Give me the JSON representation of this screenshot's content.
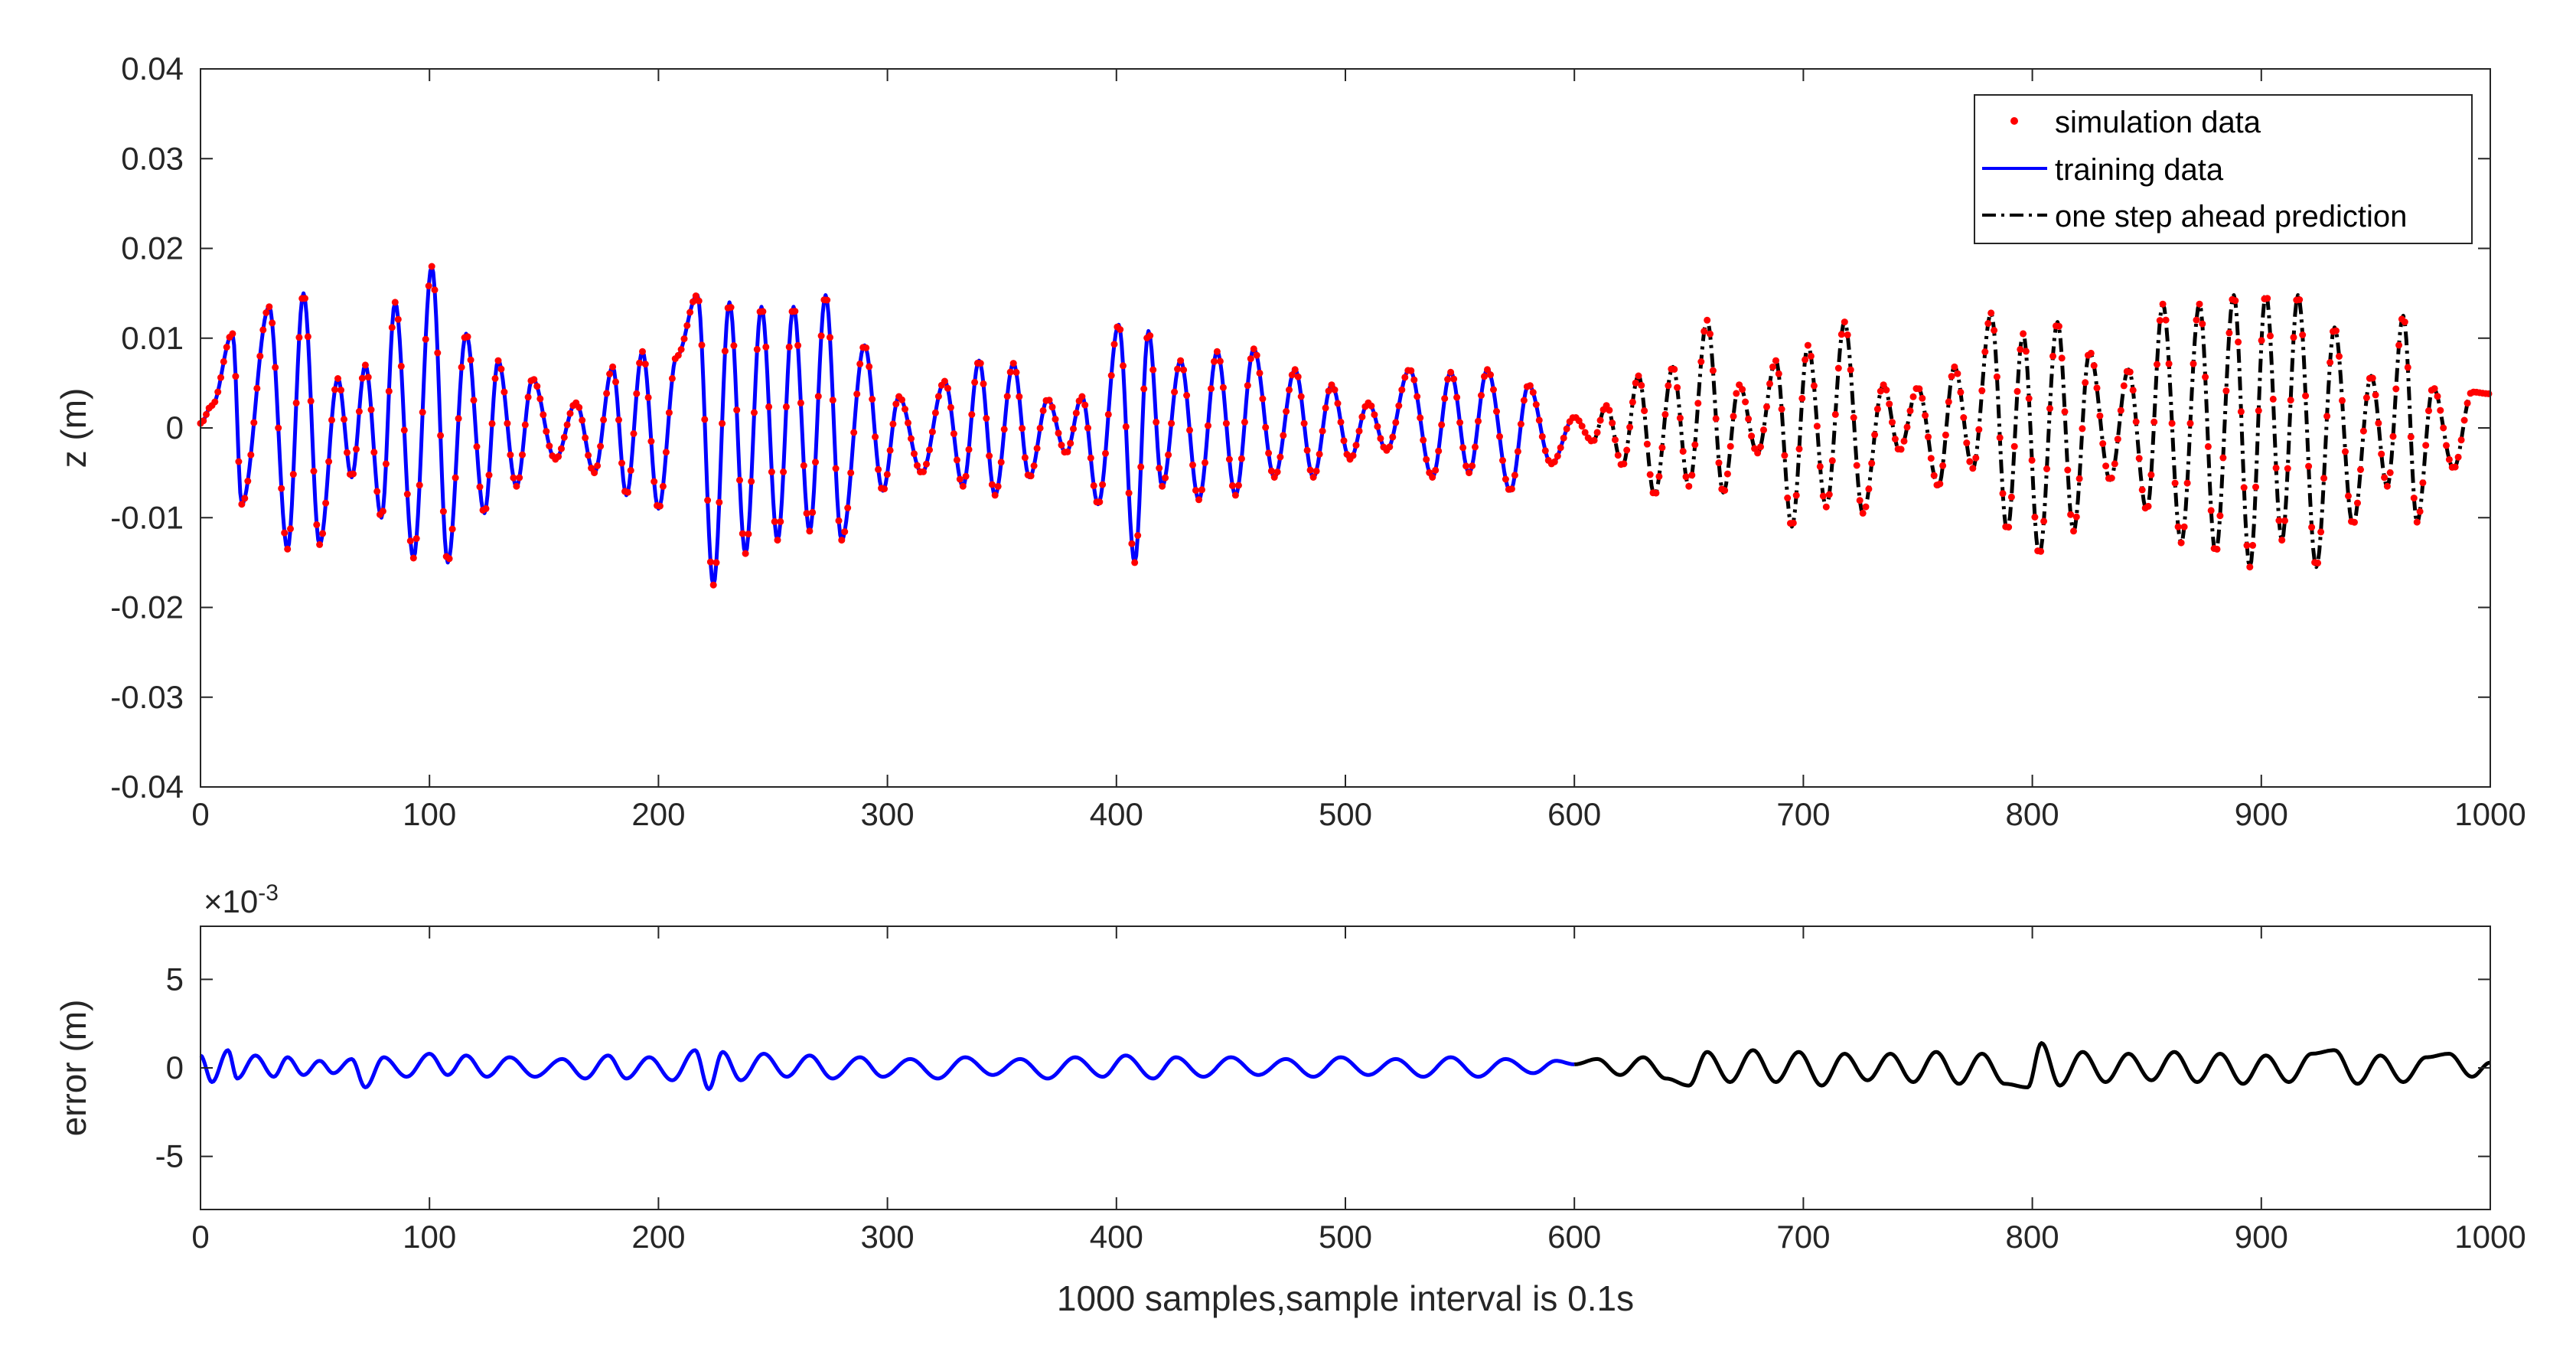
{
  "chart_data": [
    {
      "type": "line",
      "panel": "top",
      "ylabel": "z (m)",
      "xlim": [
        0,
        1000
      ],
      "ylim": [
        -0.04,
        0.04
      ],
      "xticks": [
        0,
        100,
        200,
        300,
        400,
        500,
        600,
        700,
        800,
        900,
        1000
      ],
      "xtick_labels": [
        "0",
        "100",
        "200",
        "300",
        "400",
        "500",
        "600",
        "700",
        "800",
        "900",
        "1000"
      ],
      "yticks": [
        -0.04,
        -0.03,
        -0.02,
        -0.01,
        0,
        0.01,
        0.02,
        0.03,
        0.04
      ],
      "ytick_labels": [
        "-0.04",
        "-0.03",
        "-0.02",
        "-0.01",
        "0",
        "0.01",
        "0.02",
        "0.03",
        "0.04"
      ],
      "grid": false,
      "legend_position": "top-right",
      "series": [
        {
          "name": "simulation data",
          "style": "dots",
          "color": "#ff0000",
          "x": [
            0,
            5,
            14,
            18,
            30,
            38,
            45,
            52,
            60,
            66,
            72,
            79,
            85,
            93,
            101,
            108,
            116,
            124,
            130,
            138,
            145,
            155,
            164,
            172,
            180,
            186,
            193,
            200,
            208,
            217,
            224,
            231,
            238,
            245,
            252,
            259,
            266,
            273,
            280,
            290,
            298,
            305,
            315,
            325,
            333,
            340,
            347,
            355,
            362,
            370,
            378,
            385,
            392,
            401,
            408,
            414,
            420,
            428,
            436,
            444,
            452,
            460,
            469,
            478,
            486,
            494,
            502,
            510,
            518,
            528,
            538,
            546,
            554,
            562,
            572,
            580,
            590,
            600,
            608,
            614,
            621,
            628,
            635,
            643,
            650,
            658,
            665,
            672,
            680,
            688,
            695,
            702,
            710,
            718,
            726,
            735,
            742,
            750,
            759,
            766,
            774,
            782,
            789,
            796,
            803,
            811,
            818,
            825,
            834,
            842,
            850,
            857,
            865,
            873,
            880,
            888,
            895,
            902,
            909,
            916,
            924,
            932,
            940,
            948,
            955,
            962,
            968,
            975,
            984,
            992,
            1000
          ],
          "y": [
            0.0005,
            0.0025,
            0.0105,
            -0.0085,
            0.0135,
            -0.0135,
            0.015,
            -0.013,
            0.0055,
            -0.0055,
            0.007,
            -0.01,
            0.014,
            -0.0145,
            0.018,
            -0.015,
            0.0105,
            -0.0095,
            0.0075,
            -0.0065,
            0.0055,
            -0.0035,
            0.0028,
            -0.005,
            0.0068,
            -0.0075,
            0.0085,
            -0.009,
            0.008,
            0.0148,
            -0.0175,
            0.014,
            -0.014,
            0.0135,
            -0.0125,
            0.0135,
            -0.0115,
            0.0148,
            -0.0125,
            0.0092,
            -0.007,
            0.0035,
            -0.005,
            0.0052,
            -0.0065,
            0.0075,
            -0.0075,
            0.0072,
            -0.0055,
            0.0032,
            -0.0028,
            0.0035,
            -0.0085,
            0.0115,
            -0.015,
            0.0108,
            -0.0065,
            0.0075,
            -0.008,
            0.0085,
            -0.0075,
            0.0088,
            -0.0055,
            0.0065,
            -0.0055,
            0.0048,
            -0.0035,
            0.0028,
            -0.0025,
            0.0065,
            -0.0055,
            0.0062,
            -0.005,
            0.0065,
            -0.007,
            0.0048,
            -0.004,
            0.0012,
            -0.0015,
            0.0025,
            -0.0042,
            0.0058,
            -0.0075,
            0.0068,
            -0.0065,
            0.012,
            -0.0072,
            0.0048,
            -0.0028,
            0.0075,
            -0.011,
            0.0092,
            -0.0088,
            0.0118,
            -0.0095,
            0.0048,
            -0.0025,
            0.0045,
            -0.0065,
            0.0068,
            -0.0045,
            0.0128,
            -0.0115,
            0.0105,
            -0.0142,
            0.0118,
            -0.0115,
            0.0085,
            -0.0058,
            0.0065,
            -0.0092,
            0.0138,
            -0.0128,
            0.0138,
            -0.014,
            0.0148,
            -0.0155,
            0.015,
            -0.0125,
            0.0148,
            -0.0155,
            0.0112,
            -0.0108,
            0.0058,
            -0.0065,
            0.0125,
            -0.0105,
            0.0045,
            -0.0045,
            0.004,
            0.0038
          ]
        },
        {
          "name": "training data",
          "style": "solid",
          "color": "#0000ff",
          "x": [
            0,
            5,
            14,
            18,
            30,
            38,
            45,
            52,
            60,
            66,
            72,
            79,
            85,
            93,
            101,
            108,
            116,
            124,
            130,
            138,
            145,
            155,
            164,
            172,
            180,
            186,
            193,
            200,
            208,
            217,
            224,
            231,
            238,
            245,
            252,
            259,
            266,
            273,
            280,
            290,
            298,
            305,
            315,
            325,
            333,
            340,
            347,
            355,
            362,
            370,
            378,
            385,
            392,
            401,
            408,
            414,
            420,
            428,
            436,
            444,
            452,
            460,
            469,
            478,
            486,
            494,
            502,
            510,
            518,
            528,
            538,
            546,
            554,
            562,
            572,
            580,
            590,
            600
          ],
          "y": [
            0.0005,
            0.0025,
            0.0105,
            -0.0085,
            0.0135,
            -0.0135,
            0.015,
            -0.013,
            0.0055,
            -0.0055,
            0.007,
            -0.01,
            0.014,
            -0.0145,
            0.018,
            -0.015,
            0.0105,
            -0.0095,
            0.0075,
            -0.0065,
            0.0055,
            -0.0035,
            0.0028,
            -0.005,
            0.0068,
            -0.0075,
            0.0085,
            -0.009,
            0.008,
            0.0148,
            -0.0175,
            0.014,
            -0.014,
            0.0135,
            -0.0125,
            0.0135,
            -0.0115,
            0.0148,
            -0.0125,
            0.0092,
            -0.007,
            0.0035,
            -0.005,
            0.0052,
            -0.0065,
            0.0075,
            -0.0075,
            0.0072,
            -0.0055,
            0.0032,
            -0.0028,
            0.0035,
            -0.0085,
            0.0115,
            -0.015,
            0.0108,
            -0.0065,
            0.0075,
            -0.008,
            0.0085,
            -0.0075,
            0.0088,
            -0.0055,
            0.0065,
            -0.0055,
            0.0048,
            -0.0035,
            0.0028,
            -0.0025,
            0.0065,
            -0.0055,
            0.0062,
            -0.005,
            0.0065,
            -0.007,
            0.0048,
            -0.004,
            0.0012
          ]
        },
        {
          "name": "one step ahead prediction",
          "style": "dash-dot",
          "color": "#000000",
          "x": [
            600,
            608,
            614,
            621,
            628,
            635,
            643,
            650,
            658,
            665,
            672,
            680,
            688,
            695,
            702,
            710,
            718,
            726,
            735,
            742,
            750,
            759,
            766,
            774,
            782,
            789,
            796,
            803,
            811,
            818,
            825,
            834,
            842,
            850,
            857,
            865,
            873,
            880,
            888,
            895,
            902,
            909,
            916,
            924,
            932,
            940,
            948,
            955,
            962,
            968,
            975,
            984,
            992,
            1000
          ],
          "y": [
            0.0012,
            -0.0015,
            0.0025,
            -0.0042,
            0.0058,
            -0.0075,
            0.0068,
            -0.0065,
            0.012,
            -0.0072,
            0.0048,
            -0.0028,
            0.0075,
            -0.011,
            0.0092,
            -0.0088,
            0.0118,
            -0.0095,
            0.0048,
            -0.0025,
            0.0045,
            -0.0065,
            0.0068,
            -0.0045,
            0.0128,
            -0.0115,
            0.0105,
            -0.0142,
            0.0118,
            -0.0115,
            0.0085,
            -0.0058,
            0.0065,
            -0.0092,
            0.0138,
            -0.0128,
            0.0138,
            -0.014,
            0.0148,
            -0.0155,
            0.015,
            -0.0125,
            0.0148,
            -0.0155,
            0.0112,
            -0.0108,
            0.0058,
            -0.0065,
            0.0125,
            -0.0105,
            0.0045,
            -0.0045,
            0.004,
            0.0038
          ]
        }
      ]
    },
    {
      "type": "line",
      "panel": "bottom",
      "xlabel": "1000 samples,sample interval is 0.1s",
      "ylabel": "error (m)",
      "y_exponent_label": "×10",
      "y_exponent": "-3",
      "xlim": [
        0,
        1000
      ],
      "ylim": [
        -8,
        8
      ],
      "xticks": [
        0,
        100,
        200,
        300,
        400,
        500,
        600,
        700,
        800,
        900,
        1000
      ],
      "xtick_labels": [
        "0",
        "100",
        "200",
        "300",
        "400",
        "500",
        "600",
        "700",
        "800",
        "900",
        "1000"
      ],
      "yticks": [
        -5,
        0,
        5
      ],
      "ytick_labels": [
        "-5",
        "0",
        "5"
      ],
      "grid": false,
      "series": [
        {
          "color": "#0000ff",
          "x": [
            0,
            5,
            12,
            16,
            24,
            32,
            38,
            45,
            52,
            58,
            66,
            72,
            80,
            90,
            100,
            108,
            116,
            125,
            135,
            146,
            158,
            168,
            178,
            186,
            196,
            206,
            216,
            222,
            228,
            236,
            246,
            256,
            266,
            276,
            288,
            298,
            310,
            322,
            334,
            346,
            358,
            370,
            382,
            394,
            404,
            416,
            426,
            438,
            450,
            462,
            474,
            486,
            498,
            510,
            522,
            534,
            546,
            558,
            570,
            582,
            592,
            600
          ],
          "y": [
            0.7,
            -0.8,
            1.0,
            -0.6,
            0.7,
            -0.5,
            0.6,
            -0.4,
            0.4,
            -0.3,
            0.5,
            -1.1,
            0.6,
            -0.5,
            0.8,
            -0.4,
            0.7,
            -0.5,
            0.6,
            -0.5,
            0.5,
            -0.6,
            0.7,
            -0.6,
            0.6,
            -0.7,
            1.0,
            -1.2,
            0.9,
            -0.7,
            0.8,
            -0.5,
            0.7,
            -0.6,
            0.6,
            -0.5,
            0.5,
            -0.6,
            0.6,
            -0.4,
            0.5,
            -0.6,
            0.6,
            -0.5,
            0.7,
            -0.6,
            0.6,
            -0.5,
            0.6,
            -0.4,
            0.5,
            -0.5,
            0.6,
            -0.4,
            0.5,
            -0.5,
            0.6,
            -0.5,
            0.5,
            -0.3,
            0.4,
            0.2
          ]
        },
        {
          "color": "#000000",
          "x": [
            600,
            610,
            620,
            630,
            640,
            650,
            658,
            668,
            678,
            688,
            698,
            708,
            718,
            728,
            738,
            748,
            758,
            768,
            778,
            788,
            798,
            804,
            812,
            822,
            832,
            842,
            852,
            862,
            872,
            882,
            892,
            902,
            912,
            922,
            932,
            942,
            952,
            962,
            972,
            982,
            992,
            1000
          ],
          "y": [
            0.2,
            0.5,
            -0.4,
            0.6,
            -0.6,
            -1.0,
            0.9,
            -0.8,
            1.0,
            -0.8,
            0.9,
            -1.0,
            0.8,
            -0.7,
            0.8,
            -0.8,
            0.9,
            -0.9,
            0.8,
            -0.9,
            -1.1,
            1.4,
            -1.0,
            0.9,
            -0.8,
            0.8,
            -0.7,
            0.9,
            -0.8,
            0.8,
            -0.9,
            0.7,
            -0.8,
            0.8,
            1.0,
            -0.9,
            0.7,
            -0.8,
            0.6,
            0.8,
            -0.5,
            0.3
          ]
        }
      ]
    }
  ]
}
